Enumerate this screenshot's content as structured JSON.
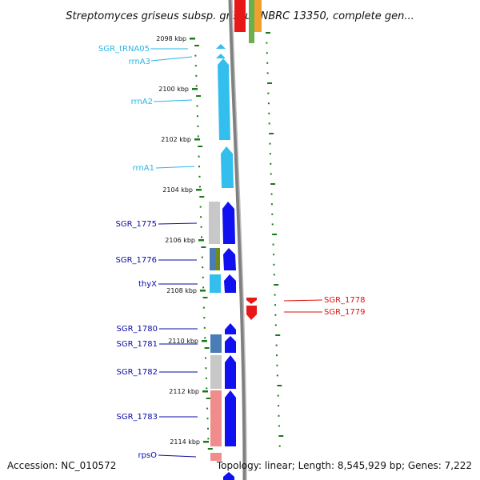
{
  "title": "Streptomyces griseus subsp. griseus NBRC 13350, complete gen...",
  "footer": {
    "accession": "Accession: NC_010572",
    "info": "Topology: linear; Length: 8,545,929 bp; Genes: 7,222"
  },
  "colors": {
    "rna_label": "#29b6e8",
    "fwd_label": "#0a0aa8",
    "rev_label": "#e01010",
    "fwd_gene": "#1010f0",
    "rev_gene": "#e81818",
    "rrna": "#33bfee",
    "trna": "#33bfee",
    "cog_gray": "#c8c8c8",
    "cog_red": "#f08c8c",
    "cog_steel": "#4a7cb8",
    "cog_olive": "#6e8a1e",
    "cog_cyan": "#33bfee",
    "scale_green": "#1a7a1a",
    "backbone": "#808080"
  },
  "map": {
    "kbp_start": 2097.2,
    "kbp_end": 2114.7,
    "ticks": [
      "2098 kbp",
      "2100 kbp",
      "2102 kbp",
      "2104 kbp",
      "2106 kbp",
      "2108 kbp",
      "2110 kbp",
      "2112 kbp",
      "2114 kbp"
    ]
  },
  "features": {
    "SGR_tRNA05": {
      "label": "SGR_tRNA05",
      "start": 2098.4,
      "end": 2098.5,
      "strand": "+",
      "kind": "trna"
    },
    "rrnA3": {
      "label": "rrnA3",
      "start": 2098.6,
      "end": 2098.7,
      "strand": "+",
      "kind": "rrna"
    },
    "rrnA2": {
      "label": "rrnA2",
      "start": 2098.8,
      "end": 2101.8,
      "strand": "+",
      "kind": "rrna"
    },
    "rrnA1": {
      "label": "rrnA1",
      "start": 2102.3,
      "end": 2103.8,
      "strand": "+",
      "kind": "rrna"
    },
    "SGR_1775": {
      "label": "SGR_1775",
      "start": 2104.5,
      "end": 2106.1,
      "strand": "+",
      "kind": "cds"
    },
    "SGR_1776": {
      "label": "SGR_1776",
      "start": 2106.4,
      "end": 2107.3,
      "strand": "+",
      "kind": "cds"
    },
    "thyX": {
      "label": "thyX",
      "start": 2107.4,
      "end": 2108.1,
      "strand": "+",
      "kind": "cds"
    },
    "SGR_1778": {
      "label": "SGR_1778",
      "start": 2108.4,
      "end": 2108.6,
      "strand": "-",
      "kind": "cds"
    },
    "SGR_1779": {
      "label": "SGR_1779",
      "start": 2108.7,
      "end": 2109.2,
      "strand": "-",
      "kind": "cds"
    },
    "SGR_1780": {
      "label": "SGR_1780",
      "start": 2109.5,
      "end": 2109.9,
      "strand": "+",
      "kind": "cds"
    },
    "SGR_1781": {
      "label": "SGR_1781",
      "start": 2109.9,
      "end": 2110.6,
      "strand": "+",
      "kind": "cds"
    },
    "SGR_1782": {
      "label": "SGR_1782",
      "start": 2110.7,
      "end": 2112.0,
      "strand": "+",
      "kind": "cds"
    },
    "SGR_1783": {
      "label": "SGR_1783",
      "start": 2112.1,
      "end": 2114.2,
      "strand": "+",
      "kind": "cds"
    },
    "rpsO": {
      "label": "rpsO",
      "start": 2114.5,
      "end": 2115.0,
      "strand": "+",
      "kind": "cds"
    }
  }
}
